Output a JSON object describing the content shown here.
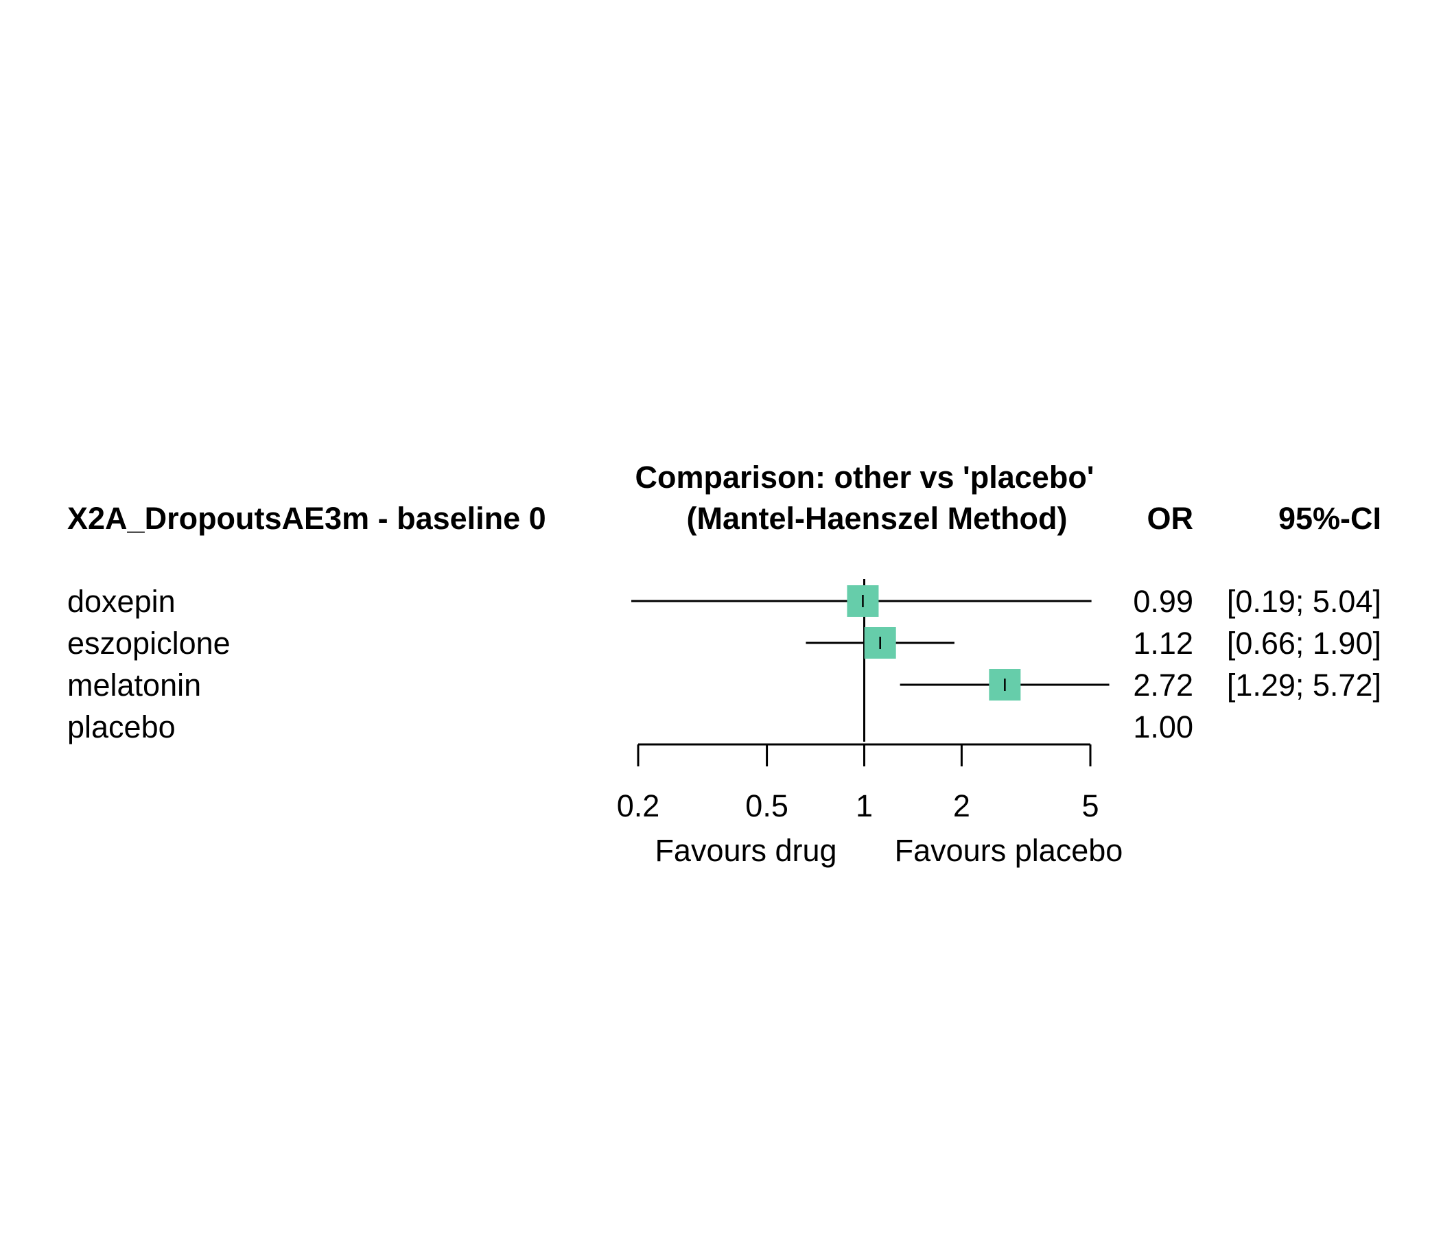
{
  "chart_data": {
    "type": "forest",
    "title": "Comparison: other vs 'placebo'",
    "subtitle": "(Mantel-Haenszel Method)",
    "left_header": "X2A_DropoutsAE3m - baseline 0",
    "estimate_header": "OR",
    "ci_header": "95%-CI",
    "x_scale": "log",
    "xlim": [
      0.2,
      5
    ],
    "x_ticks": [
      0.2,
      0.5,
      1,
      2,
      5
    ],
    "x_tick_labels": [
      "0.2",
      "0.5",
      "1",
      "2",
      "5"
    ],
    "reference_value": 1,
    "favours_left": "Favours drug",
    "favours_right": "Favours placebo",
    "marker_color": "#66CDAA",
    "rows": [
      {
        "label": "doxepin",
        "or": 0.99,
        "lower": 0.19,
        "upper": 5.04,
        "or_text": "0.99",
        "ci_text": "[0.19; 5.04]"
      },
      {
        "label": "eszopiclone",
        "or": 1.12,
        "lower": 0.66,
        "upper": 1.9,
        "or_text": "1.12",
        "ci_text": "[0.66; 1.90]"
      },
      {
        "label": "melatonin",
        "or": 2.72,
        "lower": 1.29,
        "upper": 5.72,
        "or_text": "2.72",
        "ci_text": "[1.29; 5.72]"
      },
      {
        "label": "placebo",
        "or": 1.0,
        "lower": null,
        "upper": null,
        "or_text": "1.00",
        "ci_text": ""
      }
    ]
  }
}
